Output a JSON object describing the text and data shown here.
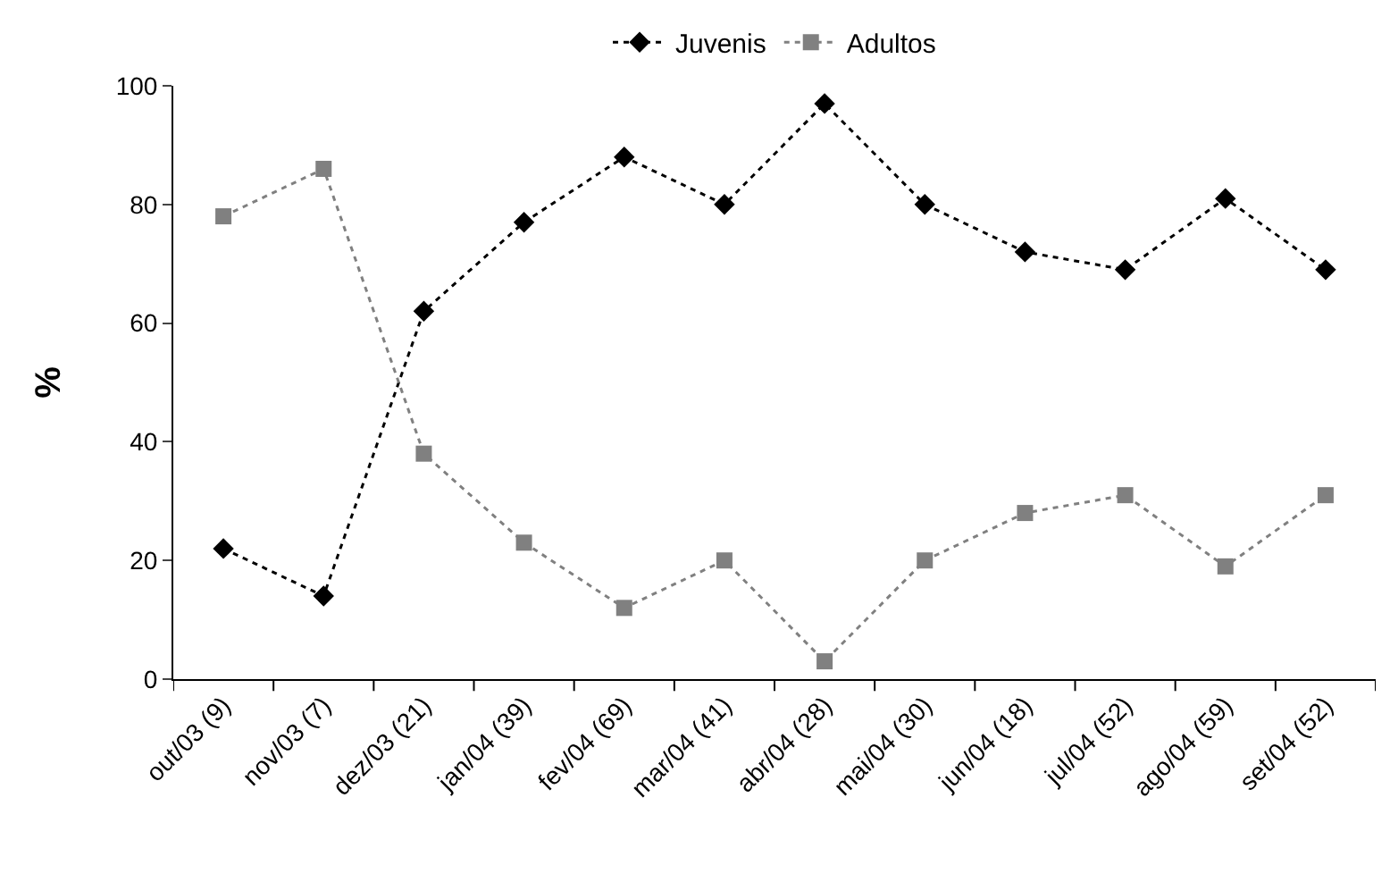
{
  "chart_data": {
    "type": "line",
    "ylabel": "%",
    "categories": [
      "out/03 (9)",
      "nov/03 (7)",
      "dez/03 (21)",
      "jan/04 (39)",
      "fev/04 (69)",
      "mar/04 (41)",
      "abr/04 (28)",
      "mai/04 (30)",
      "jun/04 (18)",
      "jul/04 (52)",
      "ago/04 (59)",
      "set/04 (52)"
    ],
    "series": [
      {
        "name": "Juvenis",
        "color": "#000000",
        "marker": "diamond",
        "values": [
          22,
          14,
          62,
          77,
          88,
          80,
          97,
          80,
          72,
          69,
          81,
          69
        ]
      },
      {
        "name": "Adultos",
        "color": "#808080",
        "marker": "square",
        "values": [
          78,
          86,
          38,
          23,
          12,
          20,
          3,
          20,
          28,
          31,
          19,
          31
        ]
      }
    ],
    "ylim": [
      0,
      100
    ],
    "yticks": [
      0,
      20,
      40,
      60,
      80,
      100
    ],
    "legend": "top",
    "line_style": "dotted"
  }
}
